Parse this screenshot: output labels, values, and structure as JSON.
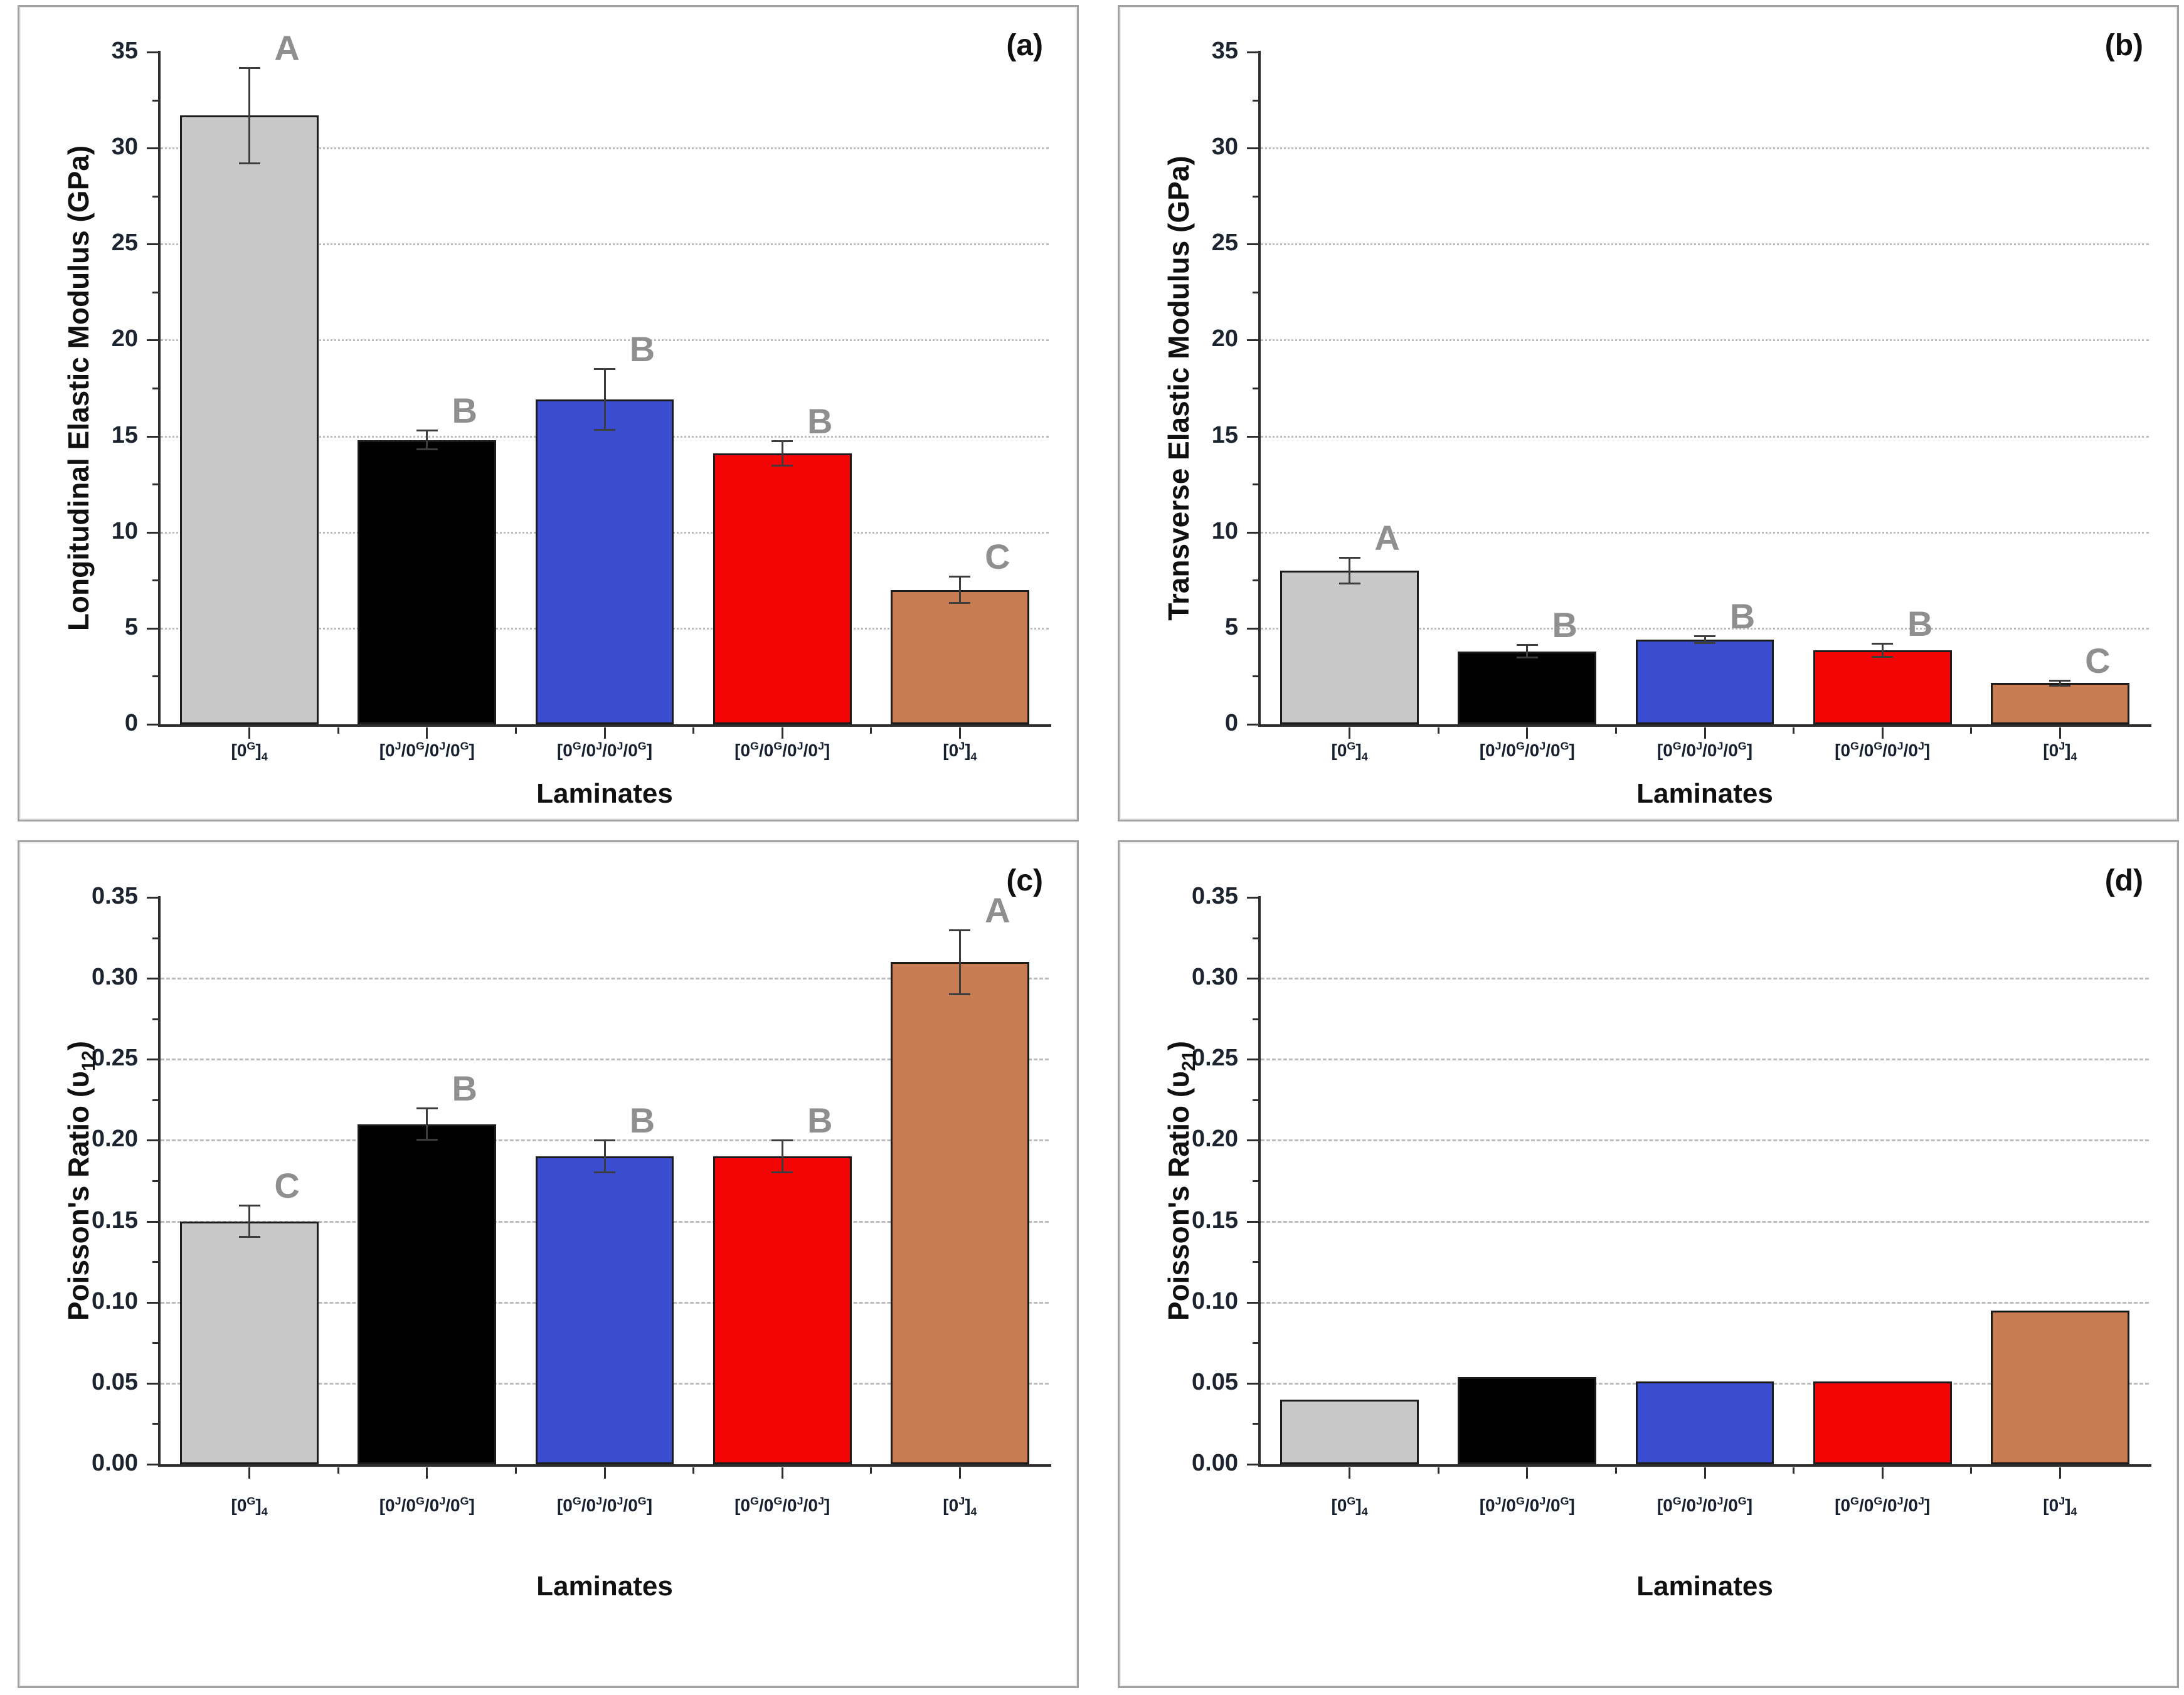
{
  "figure": {
    "background": "#ffffff",
    "panel_labels": [
      "(a)",
      "(b)",
      "(c)",
      "(d)"
    ]
  },
  "palette": {
    "bar_fills": [
      "#c8c8c8",
      "#000000",
      "#3a4cd0",
      "#f40505",
      "#c77c52"
    ],
    "bar_edge": "#1b1b1b",
    "letter_color": "#8f8f8f",
    "grid_color": "#bcbcbc",
    "axis_color": "#2e2e2e",
    "error_color": "#3d3d3d",
    "tick_text_color": "#1c2430",
    "category_text_color": "#16202e"
  },
  "chart_data": [
    {
      "type": "bar",
      "panel_label": "(a)",
      "ylabel": "Longitudinal Elastic Modulus (GPa)",
      "xlabel": "Laminates",
      "categories": [
        "[0^G]_4",
        "[0^J/0^G/0^J/0^G]",
        "[0^G/0^J/0^J/0^G]",
        "[0^G/0^G/0^J/0^J]",
        "[0^J]_4"
      ],
      "values": [
        31.7,
        14.8,
        16.9,
        14.1,
        7.0
      ],
      "errors": [
        2.5,
        0.5,
        1.6,
        0.65,
        0.7
      ],
      "sig_letters": [
        "A",
        "B",
        "B",
        "B",
        "C"
      ],
      "ylim": [
        0,
        35
      ],
      "ytick_step": 5,
      "ytick_decimals": 0,
      "grid": "dotted",
      "legend": "none"
    },
    {
      "type": "bar",
      "panel_label": "(b)",
      "ylabel": "Transverse Elastic Modulus (GPa)",
      "xlabel": "Laminates",
      "categories": [
        "[0^G]_4",
        "[0^J/0^G/0^J/0^G]",
        "[0^G/0^J/0^J/0^G]",
        "[0^G/0^G/0^J/0^J]",
        "[0^J]_4"
      ],
      "values": [
        8.0,
        3.8,
        4.4,
        3.85,
        2.15
      ],
      "errors": [
        0.7,
        0.35,
        0.2,
        0.35,
        0.15
      ],
      "sig_letters": [
        "A",
        "B",
        "B",
        "B",
        "C"
      ],
      "ylim": [
        0,
        35
      ],
      "ytick_step": 5,
      "ytick_decimals": 0,
      "grid": "dotted",
      "legend": "none"
    },
    {
      "type": "bar",
      "panel_label": "(c)",
      "ylabel": "Poisson's Ratio (υ_12)",
      "xlabel": "Laminates",
      "categories": [
        "[0^G]_4",
        "[0^J/0^G/0^J/0^G]",
        "[0^G/0^J/0^J/0^G]",
        "[0^G/0^G/0^J/0^J]",
        "[0^J]_4"
      ],
      "values": [
        0.15,
        0.21,
        0.19,
        0.19,
        0.31
      ],
      "errors": [
        0.01,
        0.01,
        0.01,
        0.01,
        0.02
      ],
      "sig_letters": [
        "C",
        "B",
        "B",
        "B",
        "A"
      ],
      "ylim": [
        0,
        0.35
      ],
      "ytick_step": 0.05,
      "ytick_decimals": 2,
      "grid": "dashed",
      "legend": "none"
    },
    {
      "type": "bar",
      "panel_label": "(d)",
      "ylabel": "Poisson's Ratio (υ_21)",
      "xlabel": "Laminates",
      "categories": [
        "[0^G]_4",
        "[0^J/0^G/0^J/0^G]",
        "[0^G/0^J/0^J/0^G]",
        "[0^G/0^G/0^J/0^J]",
        "[0^J]_4"
      ],
      "values": [
        0.04,
        0.054,
        0.051,
        0.051,
        0.095
      ],
      "errors": null,
      "sig_letters": null,
      "ylim": [
        0,
        0.35
      ],
      "ytick_step": 0.05,
      "ytick_decimals": 2,
      "grid": "dashed",
      "legend": "none"
    }
  ]
}
